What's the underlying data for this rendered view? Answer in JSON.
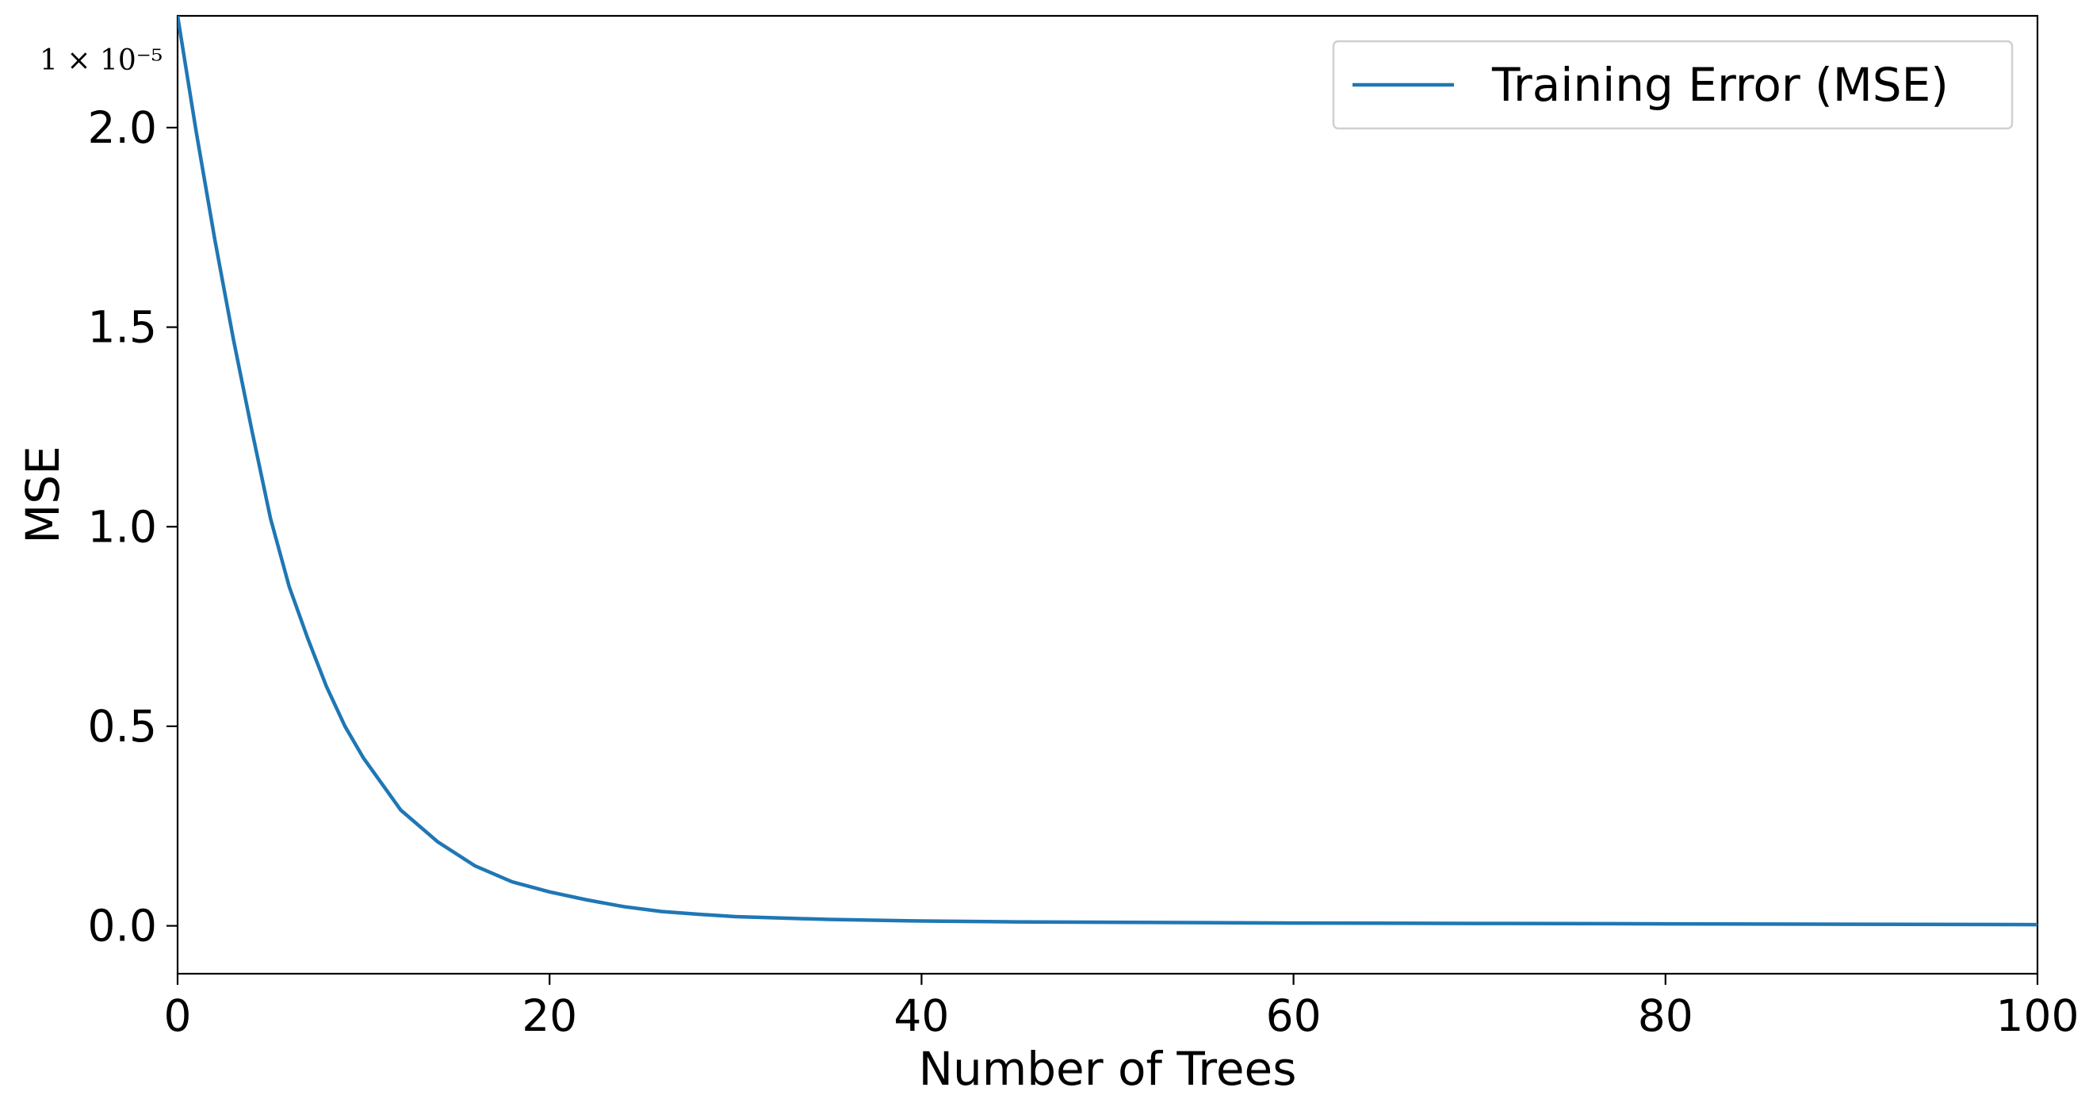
{
  "chart_data": {
    "type": "line",
    "title": "",
    "xlabel": "Number of Trees",
    "ylabel": "MSE",
    "y_offset_label": "1 × 10⁻⁵",
    "xlim": [
      0,
      100
    ],
    "ylim": [
      -0.12,
      2.28
    ],
    "x_ticks": [
      0,
      20,
      40,
      60,
      80,
      100
    ],
    "x_tick_labels": [
      "0",
      "20",
      "40",
      "60",
      "80",
      "100"
    ],
    "y_ticks": [
      0.0,
      0.5,
      1.0,
      1.5,
      2.0
    ],
    "y_tick_labels": [
      "0.0",
      "0.5",
      "1.0",
      "1.5",
      "2.0"
    ],
    "grid": false,
    "legend": {
      "position": "top-right"
    },
    "colors": {
      "series": "#1f77b4",
      "axis": "#000000"
    },
    "series": [
      {
        "name": "Training Error (MSE)",
        "x": [
          0,
          1,
          2,
          3,
          4,
          5,
          6,
          7,
          8,
          9,
          10,
          12,
          14,
          16,
          18,
          20,
          22,
          24,
          26,
          28,
          30,
          35,
          40,
          45,
          50,
          60,
          70,
          80,
          90,
          100
        ],
        "y": [
          2.28,
          1.99,
          1.72,
          1.47,
          1.24,
          1.02,
          0.85,
          0.72,
          0.6,
          0.5,
          0.42,
          0.29,
          0.21,
          0.15,
          0.11,
          0.085,
          0.065,
          0.048,
          0.036,
          0.029,
          0.023,
          0.016,
          0.012,
          0.01,
          0.009,
          0.007,
          0.006,
          0.005,
          0.004,
          0.003
        ]
      }
    ]
  }
}
